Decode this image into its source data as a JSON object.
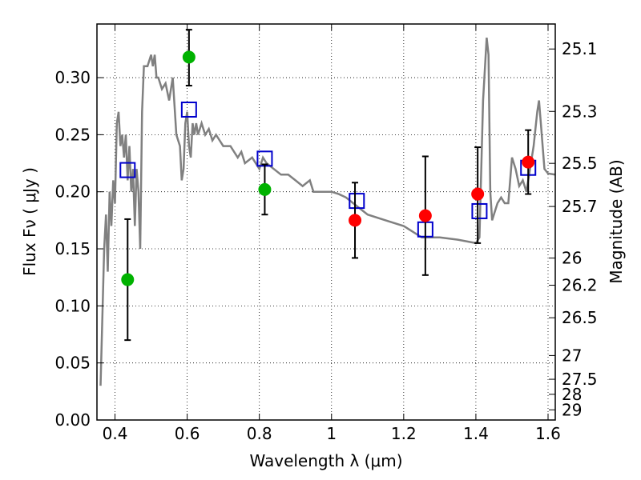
{
  "chart_data": {
    "type": "scatter",
    "xlabel": "Wavelength  λ (μm)",
    "ylabel": "Flux  Fν  ( μJy )",
    "ylabel_right": "Magnitude (AB)",
    "xlim": [
      0.35,
      1.62
    ],
    "ylim": [
      0.0,
      0.347
    ],
    "grid": true,
    "x_ticks": [
      0.4,
      0.6,
      0.8,
      1.0,
      1.2,
      1.4,
      1.6
    ],
    "x_tick_labels": [
      "0.4",
      "0.6",
      "0.8",
      "1",
      "1.2",
      "1.4",
      "1.6"
    ],
    "y_ticks": [
      0.0,
      0.05,
      0.1,
      0.15,
      0.2,
      0.25,
      0.3
    ],
    "y_tick_labels": [
      "0.00",
      "0.05",
      "0.10",
      "0.15",
      "0.20",
      "0.25",
      "0.30"
    ],
    "right_ticks": [
      {
        "label": "25.1",
        "flux": 0.3251
      },
      {
        "label": "25.3",
        "flux": 0.2704
      },
      {
        "label": "25.5",
        "flux": 0.2249
      },
      {
        "label": "25.7",
        "flux": 0.1871
      },
      {
        "label": "26",
        "flux": 0.1419
      },
      {
        "label": "26.2",
        "flux": 0.1181
      },
      {
        "label": "26.5",
        "flux": 0.0896
      },
      {
        "label": "27",
        "flux": 0.0565
      },
      {
        "label": "27.5",
        "flux": 0.0357
      },
      {
        "label": "28",
        "flux": 0.0225
      },
      {
        "label": "29",
        "flux": 0.0089
      }
    ],
    "series": [
      {
        "kind": "model_sed",
        "color": "#808080",
        "x": [
          0.36,
          0.37,
          0.375,
          0.38,
          0.385,
          0.39,
          0.395,
          0.4,
          0.405,
          0.41,
          0.415,
          0.42,
          0.425,
          0.43,
          0.435,
          0.44,
          0.445,
          0.45,
          0.455,
          0.46,
          0.465,
          0.47,
          0.475,
          0.48,
          0.49,
          0.5,
          0.505,
          0.51,
          0.515,
          0.52,
          0.53,
          0.54,
          0.55,
          0.56,
          0.57,
          0.58,
          0.585,
          0.59,
          0.595,
          0.6,
          0.605,
          0.61,
          0.615,
          0.62,
          0.625,
          0.63,
          0.64,
          0.65,
          0.66,
          0.67,
          0.68,
          0.69,
          0.7,
          0.72,
          0.74,
          0.75,
          0.76,
          0.78,
          0.8,
          0.81,
          0.82,
          0.84,
          0.86,
          0.88,
          0.9,
          0.92,
          0.94,
          0.95,
          0.96,
          0.98,
          1.0,
          1.02,
          1.04,
          1.06,
          1.08,
          1.1,
          1.15,
          1.2,
          1.25,
          1.3,
          1.35,
          1.4,
          1.41,
          1.42,
          1.43,
          1.435,
          1.44,
          1.445,
          1.45,
          1.46,
          1.47,
          1.48,
          1.49,
          1.5,
          1.51,
          1.52,
          1.53,
          1.54,
          1.55,
          1.56,
          1.57,
          1.575,
          1.58,
          1.59,
          1.6,
          1.62
        ],
        "y": [
          0.03,
          0.15,
          0.18,
          0.13,
          0.2,
          0.17,
          0.21,
          0.19,
          0.26,
          0.27,
          0.24,
          0.25,
          0.23,
          0.25,
          0.21,
          0.24,
          0.2,
          0.22,
          0.17,
          0.22,
          0.2,
          0.15,
          0.27,
          0.31,
          0.31,
          0.32,
          0.31,
          0.32,
          0.3,
          0.3,
          0.29,
          0.295,
          0.28,
          0.3,
          0.25,
          0.24,
          0.21,
          0.22,
          0.26,
          0.27,
          0.24,
          0.23,
          0.26,
          0.25,
          0.26,
          0.25,
          0.26,
          0.25,
          0.255,
          0.245,
          0.25,
          0.245,
          0.24,
          0.24,
          0.23,
          0.235,
          0.225,
          0.23,
          0.22,
          0.23,
          0.225,
          0.22,
          0.215,
          0.215,
          0.21,
          0.205,
          0.21,
          0.2,
          0.2,
          0.2,
          0.2,
          0.198,
          0.195,
          0.19,
          0.185,
          0.18,
          0.175,
          0.17,
          0.16,
          0.16,
          0.158,
          0.155,
          0.16,
          0.28,
          0.335,
          0.32,
          0.2,
          0.175,
          0.18,
          0.19,
          0.195,
          0.19,
          0.19,
          0.23,
          0.22,
          0.205,
          0.21,
          0.2,
          0.22,
          0.24,
          0.27,
          0.28,
          0.26,
          0.22,
          0.216,
          0.215
        ]
      },
      {
        "kind": "model_flux_squares",
        "color": "#0000cc",
        "x": [
          0.435,
          0.605,
          0.815,
          1.07,
          1.26,
          1.41,
          1.545
        ],
        "y": [
          0.219,
          0.272,
          0.229,
          0.192,
          0.167,
          0.183,
          0.221
        ]
      },
      {
        "kind": "observed_green",
        "color": "#00b200",
        "x": [
          0.435,
          0.605,
          0.815
        ],
        "y": [
          0.123,
          0.318,
          0.202
        ],
        "err_low": [
          0.07,
          0.293,
          0.18
        ],
        "err_high": [
          0.176,
          0.342,
          0.224
        ]
      },
      {
        "kind": "observed_red",
        "color": "#ff0000",
        "x": [
          1.065,
          1.26,
          1.405,
          1.545
        ],
        "y": [
          0.175,
          0.179,
          0.198,
          0.226
        ],
        "err_low": [
          0.142,
          0.127,
          0.155,
          0.198
        ],
        "err_high": [
          0.208,
          0.231,
          0.239,
          0.254
        ]
      }
    ]
  }
}
